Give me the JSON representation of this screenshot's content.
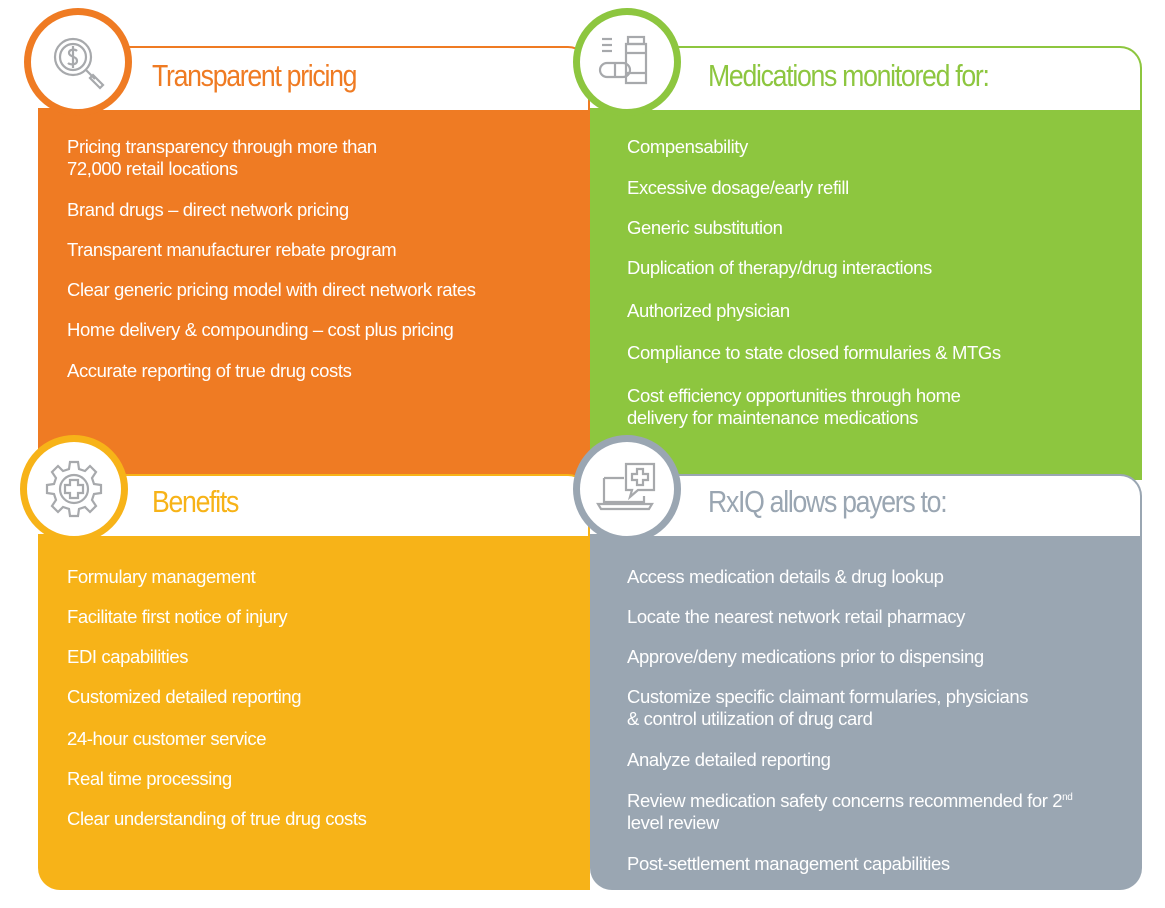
{
  "colors": {
    "orange": "#EF7B23",
    "green": "#8DC63F",
    "yellow": "#F7B318",
    "slate": "#9AA6B2"
  },
  "panels": {
    "pricing": {
      "title": "Transparent pricing",
      "icon": "dollar-magnifier-icon",
      "items": [
        "Pricing transparency through more than\n72,000 retail locations",
        "Brand drugs – direct network pricing",
        "Transparent manufacturer rebate program",
        "Clear generic pricing model with direct network rates",
        "Home delivery & compounding – cost plus pricing",
        "Accurate reporting of true drug costs"
      ]
    },
    "medications": {
      "title": "Medications monitored for:",
      "icon": "pill-bottle-icon",
      "items": [
        "Compensability",
        "Excessive dosage/early refill",
        "Generic substitution",
        "Duplication of therapy/drug interactions",
        "Authorized physician",
        "Compliance to state closed formularies & MTGs",
        "Cost efficiency opportunities through home\ndelivery for maintenance medications"
      ]
    },
    "benefits": {
      "title": "Benefits",
      "icon": "gear-plus-icon",
      "items": [
        "Formulary management",
        "Facilitate first notice of injury",
        "EDI capabilities",
        "Customized detailed reporting",
        "24-hour customer service",
        "Real time processing",
        "Clear understanding of true drug costs"
      ]
    },
    "rxiq": {
      "title": "RxIQ allows payers to:",
      "icon": "laptop-medical-chat-icon",
      "items": [
        "Access medication details & drug lookup",
        "Locate the nearest network retail pharmacy",
        "Approve/deny medications prior to dispensing",
        "Customize specific claimant formularies, physicians\n& control utilization of drug card",
        "Analyze detailed reporting"
      ],
      "review_line1": "Review medication safety concerns recommended for 2",
      "review_sup": "nd",
      "review_line2": "level review",
      "last_item": "Post-settlement management capabilities"
    }
  }
}
